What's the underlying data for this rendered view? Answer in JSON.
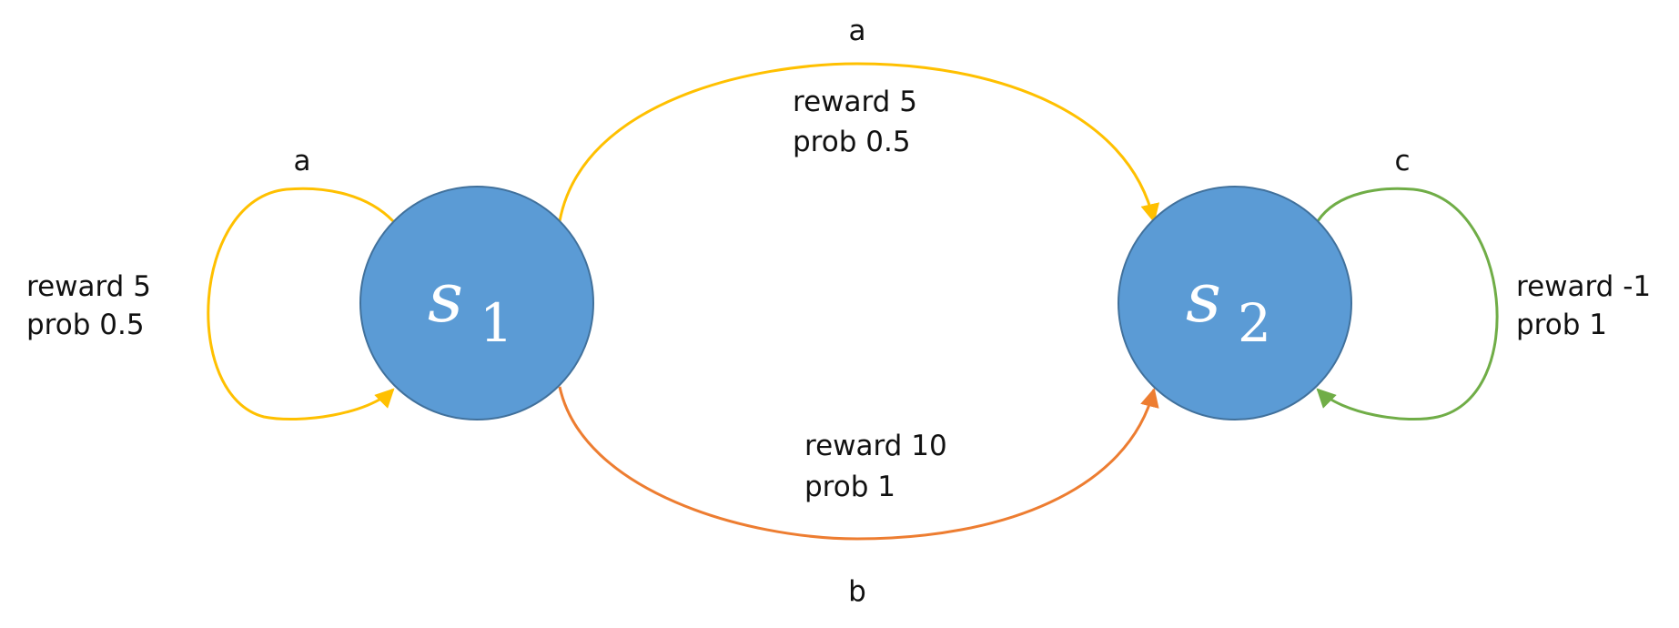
{
  "colors": {
    "state_fill": "#5b9bd5",
    "state_stroke": "#41719c",
    "edge_a": "#ffc000",
    "edge_b": "#ed7d31",
    "edge_c": "#70ad47",
    "text": "#111111"
  },
  "states": [
    {
      "symbol": "s",
      "subscript": "1"
    },
    {
      "symbol": "s",
      "subscript": "2"
    }
  ],
  "transitions": [
    {
      "action": "a",
      "reward": "reward 5",
      "prob": "prob 0.5",
      "color": "#ffc000"
    },
    {
      "action": "a",
      "reward": "reward 5",
      "prob": "prob 0.5",
      "color": "#ffc000"
    },
    {
      "action": "b",
      "reward": "reward 10",
      "prob": "prob 1",
      "color": "#ed7d31"
    },
    {
      "action": "c",
      "reward": "reward -1",
      "prob": "prob 1",
      "color": "#70ad47"
    }
  ]
}
